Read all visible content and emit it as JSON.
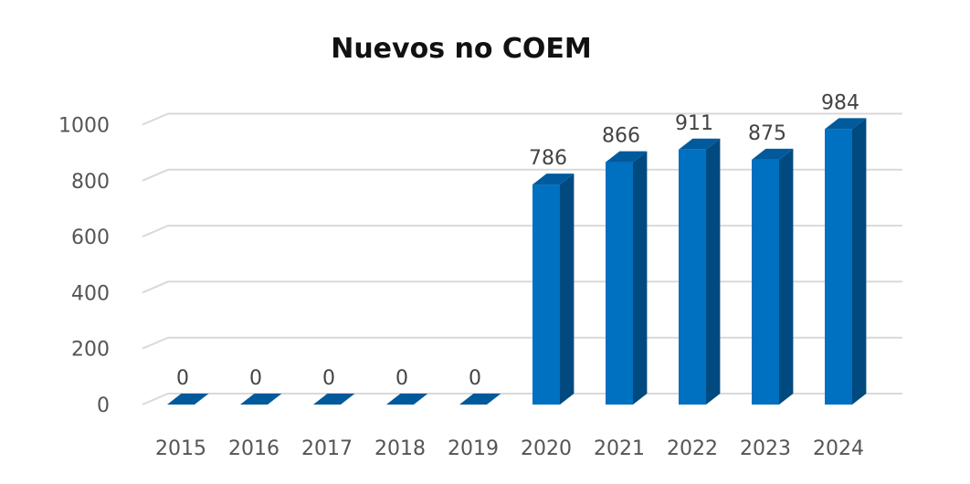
{
  "chart_data": {
    "type": "bar",
    "title": "Nuevos no COEM",
    "categories": [
      "2015",
      "2016",
      "2017",
      "2018",
      "2019",
      "2020",
      "2021",
      "2022",
      "2023",
      "2024"
    ],
    "values": [
      0,
      0,
      0,
      0,
      0,
      786,
      866,
      911,
      875,
      984
    ],
    "yticks": [
      "0",
      "200",
      "400",
      "600",
      "800",
      "1000"
    ],
    "ylim": [
      0,
      1000
    ],
    "xlabel": "",
    "ylabel": "",
    "grid": true,
    "legend": "none",
    "colors": {
      "bar_front": "#0070C0",
      "bar_side": "#004A80",
      "bar_top": "#005A9C",
      "grid": "#D9D9D9"
    }
  }
}
